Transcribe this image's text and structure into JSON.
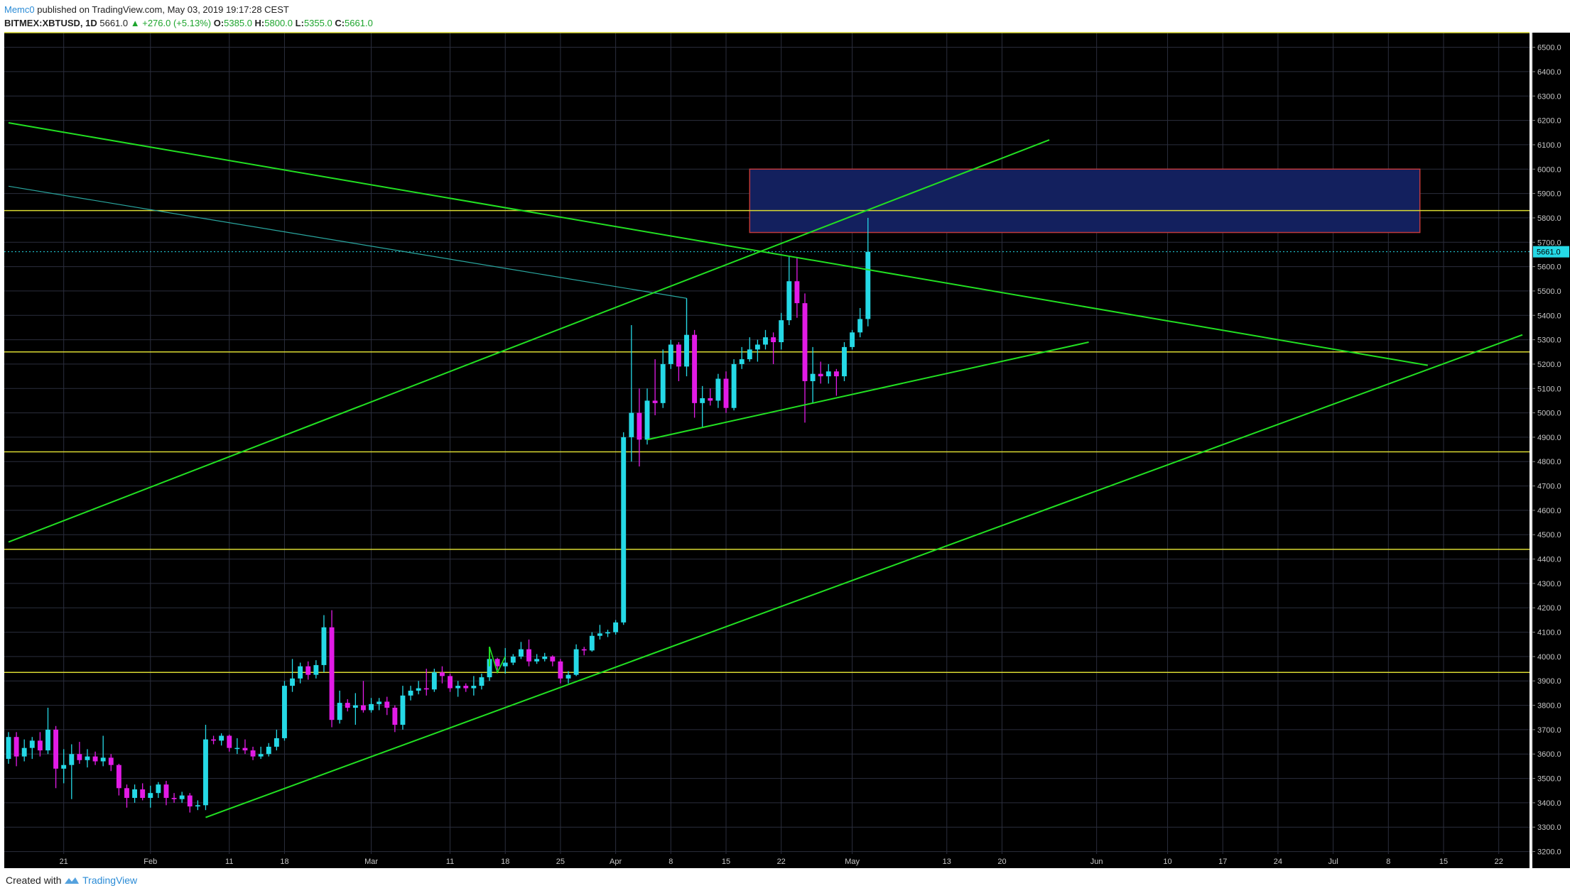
{
  "header": {
    "author": "Memc0",
    "published": "published on TradingView.com, May 03, 2019 19:17:28 CEST",
    "symbol": "BITMEX:XBTUSD, 1D",
    "last": "5661.0",
    "change": "▲ +276.0 (+5.13%)",
    "o_label": "O:",
    "o": "5385.0",
    "h_label": "H:",
    "h": "5800.0",
    "l_label": "L:",
    "l": "5355.0",
    "c_label": "C:",
    "c": "5661.0"
  },
  "footer": {
    "created": "Created with",
    "brand": "TradingView"
  },
  "chart_data": {
    "type": "candlestick",
    "ylim": [
      3190,
      6560
    ],
    "yticks": [
      6500,
      6400,
      6300,
      6200,
      6100,
      6000,
      5900,
      5800,
      5700,
      5600,
      5500,
      5400,
      5300,
      5200,
      5100,
      5000,
      4900,
      4800,
      4700,
      4600,
      4500,
      4400,
      4300,
      4200,
      4100,
      4000,
      3900,
      3800,
      3700,
      3600,
      3500,
      3400,
      3300,
      3200
    ],
    "ytick_labels": [
      "6500.0",
      "6400.0",
      "6300.0",
      "6200.0",
      "6100.0",
      "6000.0",
      "5900.0",
      "5800.0",
      "5700.0",
      "5600.0",
      "5500.0",
      "5400.0",
      "5300.0",
      "5200.0",
      "5100.0",
      "5000.0",
      "4900.0",
      "4800.0",
      "4700.0",
      "4600.0",
      "4500.0",
      "4400.0",
      "4300.0",
      "4200.0",
      "4100.0",
      "4000.0",
      "3900.0",
      "3800.0",
      "3700.0",
      "3600.0",
      "3500.0",
      "3400.0",
      "3300.0",
      "3200.0"
    ],
    "x_start": "2019-01-14",
    "x_end": "2019-07-25",
    "xticks": [
      {
        "date": "2019-01-21",
        "label": "21"
      },
      {
        "date": "2019-02-01",
        "label": "Feb"
      },
      {
        "date": "2019-02-11",
        "label": "11"
      },
      {
        "date": "2019-02-18",
        "label": "18"
      },
      {
        "date": "2019-03-01",
        "label": "Mar"
      },
      {
        "date": "2019-03-11",
        "label": "11"
      },
      {
        "date": "2019-03-18",
        "label": "18"
      },
      {
        "date": "2019-03-25",
        "label": "25"
      },
      {
        "date": "2019-04-01",
        "label": "Apr"
      },
      {
        "date": "2019-04-08",
        "label": "8"
      },
      {
        "date": "2019-04-15",
        "label": "15"
      },
      {
        "date": "2019-04-22",
        "label": "22"
      },
      {
        "date": "2019-05-01",
        "label": "May"
      },
      {
        "date": "2019-05-13",
        "label": "13"
      },
      {
        "date": "2019-05-20",
        "label": "20"
      },
      {
        "date": "2019-06-01",
        "label": "Jun"
      },
      {
        "date": "2019-06-10",
        "label": "10"
      },
      {
        "date": "2019-06-17",
        "label": "17"
      },
      {
        "date": "2019-06-24",
        "label": "24"
      },
      {
        "date": "2019-07-01",
        "label": "Jul"
      },
      {
        "date": "2019-07-08",
        "label": "8"
      },
      {
        "date": "2019-07-15",
        "label": "15"
      },
      {
        "date": "2019-07-22",
        "label": "22"
      }
    ],
    "candles": [
      {
        "date": "2019-01-14",
        "o": 3580,
        "h": 3690,
        "l": 3560,
        "c": 3670
      },
      {
        "date": "2019-01-15",
        "o": 3670,
        "h": 3690,
        "l": 3550,
        "c": 3590
      },
      {
        "date": "2019-01-16",
        "o": 3590,
        "h": 3660,
        "l": 3570,
        "c": 3625
      },
      {
        "date": "2019-01-17",
        "o": 3625,
        "h": 3670,
        "l": 3580,
        "c": 3655
      },
      {
        "date": "2019-01-18",
        "o": 3655,
        "h": 3690,
        "l": 3590,
        "c": 3615
      },
      {
        "date": "2019-01-19",
        "o": 3615,
        "h": 3790,
        "l": 3600,
        "c": 3700
      },
      {
        "date": "2019-01-20",
        "o": 3700,
        "h": 3715,
        "l": 3460,
        "c": 3540
      },
      {
        "date": "2019-01-21",
        "o": 3540,
        "h": 3620,
        "l": 3480,
        "c": 3555
      },
      {
        "date": "2019-01-22",
        "o": 3555,
        "h": 3640,
        "l": 3415,
        "c": 3600
      },
      {
        "date": "2019-01-23",
        "o": 3600,
        "h": 3650,
        "l": 3560,
        "c": 3575
      },
      {
        "date": "2019-01-24",
        "o": 3575,
        "h": 3620,
        "l": 3545,
        "c": 3590
      },
      {
        "date": "2019-01-25",
        "o": 3590,
        "h": 3610,
        "l": 3555,
        "c": 3570
      },
      {
        "date": "2019-01-26",
        "o": 3570,
        "h": 3675,
        "l": 3550,
        "c": 3585
      },
      {
        "date": "2019-01-27",
        "o": 3585,
        "h": 3600,
        "l": 3530,
        "c": 3555
      },
      {
        "date": "2019-01-28",
        "o": 3555,
        "h": 3560,
        "l": 3430,
        "c": 3460
      },
      {
        "date": "2019-01-29",
        "o": 3460,
        "h": 3475,
        "l": 3380,
        "c": 3420
      },
      {
        "date": "2019-01-30",
        "o": 3420,
        "h": 3475,
        "l": 3400,
        "c": 3455
      },
      {
        "date": "2019-01-31",
        "o": 3455,
        "h": 3480,
        "l": 3410,
        "c": 3420
      },
      {
        "date": "2019-02-01",
        "o": 3420,
        "h": 3470,
        "l": 3380,
        "c": 3440
      },
      {
        "date": "2019-02-02",
        "o": 3440,
        "h": 3485,
        "l": 3420,
        "c": 3475
      },
      {
        "date": "2019-02-03",
        "o": 3475,
        "h": 3490,
        "l": 3390,
        "c": 3420
      },
      {
        "date": "2019-02-04",
        "o": 3420,
        "h": 3440,
        "l": 3400,
        "c": 3415
      },
      {
        "date": "2019-02-05",
        "o": 3415,
        "h": 3445,
        "l": 3400,
        "c": 3430
      },
      {
        "date": "2019-02-06",
        "o": 3430,
        "h": 3440,
        "l": 3360,
        "c": 3385
      },
      {
        "date": "2019-02-07",
        "o": 3385,
        "h": 3410,
        "l": 3370,
        "c": 3390
      },
      {
        "date": "2019-02-08",
        "o": 3390,
        "h": 3720,
        "l": 3370,
        "c": 3660
      },
      {
        "date": "2019-02-09",
        "o": 3660,
        "h": 3675,
        "l": 3640,
        "c": 3655
      },
      {
        "date": "2019-02-10",
        "o": 3655,
        "h": 3685,
        "l": 3635,
        "c": 3675
      },
      {
        "date": "2019-02-11",
        "o": 3675,
        "h": 3680,
        "l": 3610,
        "c": 3625
      },
      {
        "date": "2019-02-12",
        "o": 3625,
        "h": 3665,
        "l": 3600,
        "c": 3625
      },
      {
        "date": "2019-02-13",
        "o": 3625,
        "h": 3660,
        "l": 3600,
        "c": 3615
      },
      {
        "date": "2019-02-14",
        "o": 3615,
        "h": 3630,
        "l": 3575,
        "c": 3590
      },
      {
        "date": "2019-02-15",
        "o": 3590,
        "h": 3630,
        "l": 3580,
        "c": 3600
      },
      {
        "date": "2019-02-16",
        "o": 3600,
        "h": 3645,
        "l": 3590,
        "c": 3630
      },
      {
        "date": "2019-02-17",
        "o": 3630,
        "h": 3700,
        "l": 3615,
        "c": 3665
      },
      {
        "date": "2019-02-18",
        "o": 3665,
        "h": 3900,
        "l": 3655,
        "c": 3880
      },
      {
        "date": "2019-02-19",
        "o": 3880,
        "h": 3990,
        "l": 3855,
        "c": 3910
      },
      {
        "date": "2019-02-20",
        "o": 3910,
        "h": 3975,
        "l": 3890,
        "c": 3960
      },
      {
        "date": "2019-02-21",
        "o": 3960,
        "h": 3980,
        "l": 3905,
        "c": 3925
      },
      {
        "date": "2019-02-22",
        "o": 3925,
        "h": 3985,
        "l": 3910,
        "c": 3965
      },
      {
        "date": "2019-02-23",
        "o": 3965,
        "h": 4170,
        "l": 3935,
        "c": 4120
      },
      {
        "date": "2019-02-24",
        "o": 4120,
        "h": 4190,
        "l": 3710,
        "c": 3740
      },
      {
        "date": "2019-02-25",
        "o": 3740,
        "h": 3860,
        "l": 3725,
        "c": 3810
      },
      {
        "date": "2019-02-26",
        "o": 3810,
        "h": 3825,
        "l": 3775,
        "c": 3790
      },
      {
        "date": "2019-02-27",
        "o": 3790,
        "h": 3850,
        "l": 3720,
        "c": 3800
      },
      {
        "date": "2019-02-28",
        "o": 3800,
        "h": 3900,
        "l": 3770,
        "c": 3780
      },
      {
        "date": "2019-03-01",
        "o": 3780,
        "h": 3830,
        "l": 3770,
        "c": 3805
      },
      {
        "date": "2019-03-02",
        "o": 3805,
        "h": 3830,
        "l": 3780,
        "c": 3815
      },
      {
        "date": "2019-03-03",
        "o": 3815,
        "h": 3835,
        "l": 3760,
        "c": 3790
      },
      {
        "date": "2019-03-04",
        "o": 3790,
        "h": 3800,
        "l": 3690,
        "c": 3720
      },
      {
        "date": "2019-03-05",
        "o": 3720,
        "h": 3880,
        "l": 3700,
        "c": 3840
      },
      {
        "date": "2019-03-06",
        "o": 3840,
        "h": 3880,
        "l": 3820,
        "c": 3860
      },
      {
        "date": "2019-03-07",
        "o": 3860,
        "h": 3900,
        "l": 3845,
        "c": 3870
      },
      {
        "date": "2019-03-08",
        "o": 3870,
        "h": 3950,
        "l": 3840,
        "c": 3865
      },
      {
        "date": "2019-03-09",
        "o": 3865,
        "h": 3950,
        "l": 3855,
        "c": 3935
      },
      {
        "date": "2019-03-10",
        "o": 3935,
        "h": 3960,
        "l": 3890,
        "c": 3920
      },
      {
        "date": "2019-03-11",
        "o": 3920,
        "h": 3930,
        "l": 3855,
        "c": 3870
      },
      {
        "date": "2019-03-12",
        "o": 3870,
        "h": 3900,
        "l": 3835,
        "c": 3880
      },
      {
        "date": "2019-03-13",
        "o": 3880,
        "h": 3890,
        "l": 3855,
        "c": 3870
      },
      {
        "date": "2019-03-14",
        "o": 3870,
        "h": 3920,
        "l": 3840,
        "c": 3880
      },
      {
        "date": "2019-03-15",
        "o": 3880,
        "h": 3930,
        "l": 3865,
        "c": 3915
      },
      {
        "date": "2019-03-16",
        "o": 3915,
        "h": 4040,
        "l": 3900,
        "c": 3990
      },
      {
        "date": "2019-03-17",
        "o": 3990,
        "h": 3995,
        "l": 3945,
        "c": 3960
      },
      {
        "date": "2019-03-18",
        "o": 3960,
        "h": 4035,
        "l": 3930,
        "c": 3975
      },
      {
        "date": "2019-03-19",
        "o": 3975,
        "h": 4010,
        "l": 3965,
        "c": 4000
      },
      {
        "date": "2019-03-20",
        "o": 4000,
        "h": 4060,
        "l": 3990,
        "c": 4030
      },
      {
        "date": "2019-03-21",
        "o": 4030,
        "h": 4070,
        "l": 3960,
        "c": 3980
      },
      {
        "date": "2019-03-22",
        "o": 3980,
        "h": 4010,
        "l": 3970,
        "c": 3990
      },
      {
        "date": "2019-03-23",
        "o": 3990,
        "h": 4015,
        "l": 3980,
        "c": 4000
      },
      {
        "date": "2019-03-24",
        "o": 4000,
        "h": 4005,
        "l": 3960,
        "c": 3980
      },
      {
        "date": "2019-03-25",
        "o": 3980,
        "h": 3990,
        "l": 3890,
        "c": 3910
      },
      {
        "date": "2019-03-26",
        "o": 3910,
        "h": 3940,
        "l": 3890,
        "c": 3925
      },
      {
        "date": "2019-03-27",
        "o": 3925,
        "h": 4050,
        "l": 3920,
        "c": 4030
      },
      {
        "date": "2019-03-28",
        "o": 4030,
        "h": 4040,
        "l": 4005,
        "c": 4025
      },
      {
        "date": "2019-03-29",
        "o": 4025,
        "h": 4100,
        "l": 4020,
        "c": 4085
      },
      {
        "date": "2019-03-30",
        "o": 4085,
        "h": 4130,
        "l": 4070,
        "c": 4095
      },
      {
        "date": "2019-03-31",
        "o": 4095,
        "h": 4110,
        "l": 4080,
        "c": 4100
      },
      {
        "date": "2019-04-01",
        "o": 4100,
        "h": 4150,
        "l": 4090,
        "c": 4140
      },
      {
        "date": "2019-04-02",
        "o": 4140,
        "h": 4920,
        "l": 4130,
        "c": 4900
      },
      {
        "date": "2019-04-03",
        "o": 4900,
        "h": 5360,
        "l": 4800,
        "c": 5000
      },
      {
        "date": "2019-04-04",
        "o": 5000,
        "h": 5100,
        "l": 4780,
        "c": 4890
      },
      {
        "date": "2019-04-05",
        "o": 4890,
        "h": 5100,
        "l": 4870,
        "c": 5050
      },
      {
        "date": "2019-04-06",
        "o": 5050,
        "h": 5220,
        "l": 4990,
        "c": 5040
      },
      {
        "date": "2019-04-07",
        "o": 5040,
        "h": 5260,
        "l": 5020,
        "c": 5200
      },
      {
        "date": "2019-04-08",
        "o": 5200,
        "h": 5300,
        "l": 5180,
        "c": 5280
      },
      {
        "date": "2019-04-09",
        "o": 5280,
        "h": 5290,
        "l": 5130,
        "c": 5190
      },
      {
        "date": "2019-04-10",
        "o": 5190,
        "h": 5470,
        "l": 5150,
        "c": 5320
      },
      {
        "date": "2019-04-11",
        "o": 5320,
        "h": 5340,
        "l": 4980,
        "c": 5040
      },
      {
        "date": "2019-04-12",
        "o": 5040,
        "h": 5110,
        "l": 4940,
        "c": 5060
      },
      {
        "date": "2019-04-13",
        "o": 5060,
        "h": 5100,
        "l": 5030,
        "c": 5050
      },
      {
        "date": "2019-04-14",
        "o": 5050,
        "h": 5160,
        "l": 5020,
        "c": 5140
      },
      {
        "date": "2019-04-15",
        "o": 5140,
        "h": 5170,
        "l": 5000,
        "c": 5020
      },
      {
        "date": "2019-04-16",
        "o": 5020,
        "h": 5220,
        "l": 5010,
        "c": 5200
      },
      {
        "date": "2019-04-17",
        "o": 5200,
        "h": 5270,
        "l": 5180,
        "c": 5220
      },
      {
        "date": "2019-04-18",
        "o": 5220,
        "h": 5310,
        "l": 5210,
        "c": 5260
      },
      {
        "date": "2019-04-19",
        "o": 5260,
        "h": 5300,
        "l": 5210,
        "c": 5280
      },
      {
        "date": "2019-04-20",
        "o": 5280,
        "h": 5340,
        "l": 5260,
        "c": 5310
      },
      {
        "date": "2019-04-21",
        "o": 5310,
        "h": 5330,
        "l": 5200,
        "c": 5290
      },
      {
        "date": "2019-04-22",
        "o": 5290,
        "h": 5410,
        "l": 5260,
        "c": 5380
      },
      {
        "date": "2019-04-23",
        "o": 5380,
        "h": 5640,
        "l": 5360,
        "c": 5540
      },
      {
        "date": "2019-04-24",
        "o": 5540,
        "h": 5640,
        "l": 5390,
        "c": 5450
      },
      {
        "date": "2019-04-25",
        "o": 5450,
        "h": 5490,
        "l": 4960,
        "c": 5130
      },
      {
        "date": "2019-04-26",
        "o": 5130,
        "h": 5270,
        "l": 5040,
        "c": 5160
      },
      {
        "date": "2019-04-27",
        "o": 5160,
        "h": 5210,
        "l": 5120,
        "c": 5150
      },
      {
        "date": "2019-04-28",
        "o": 5150,
        "h": 5200,
        "l": 5120,
        "c": 5170
      },
      {
        "date": "2019-04-29",
        "o": 5170,
        "h": 5180,
        "l": 5070,
        "c": 5150
      },
      {
        "date": "2019-04-30",
        "o": 5150,
        "h": 5290,
        "l": 5130,
        "c": 5270
      },
      {
        "date": "2019-05-01",
        "o": 5270,
        "h": 5340,
        "l": 5260,
        "c": 5330
      },
      {
        "date": "2019-05-02",
        "o": 5330,
        "h": 5430,
        "l": 5310,
        "c": 5385
      },
      {
        "date": "2019-05-03",
        "o": 5385,
        "h": 5800,
        "l": 5355,
        "c": 5661
      }
    ],
    "hlines": [
      6560,
      5830,
      5250,
      4840,
      4440,
      3935
    ],
    "zone": {
      "x0": "2019-04-18",
      "x1": "2019-07-12",
      "y0": 5740,
      "y1": 6000
    },
    "lines": [
      {
        "p1": [
          "2019-01-14",
          6190
        ],
        "p2": [
          "2019-07-13",
          5195
        ]
      },
      {
        "p1": [
          "2019-01-14",
          4470
        ],
        "p2": [
          "2019-05-26",
          6120
        ]
      },
      {
        "p1": [
          "2019-02-08",
          3340
        ],
        "p2": [
          "2019-07-25",
          5320
        ]
      },
      {
        "p1": [
          "2019-04-05",
          4890
        ],
        "p2": [
          "2019-05-31",
          5290
        ]
      },
      {
        "p1": [
          "2019-03-16",
          3960
        ],
        "p2": [
          "2019-03-16",
          4040
        ]
      }
    ],
    "thin_line": {
      "p1": [
        "2019-01-14",
        5930
      ],
      "p2": [
        "2019-04-10",
        5470
      ]
    },
    "last_price": 5661,
    "last_price_label": "5661.0",
    "colors": {
      "background": "#000000",
      "grid": "#2b2e3d",
      "up": "#25d9e6",
      "down": "#e21be6",
      "hline": "#d9d932",
      "trend": "#22e022",
      "thin": "#2aa7a0",
      "zone_fill": "#13205e",
      "zone_border": "#c0393b",
      "axis_text": "#c8c8c8",
      "price_tag": "#25d9e6"
    }
  }
}
